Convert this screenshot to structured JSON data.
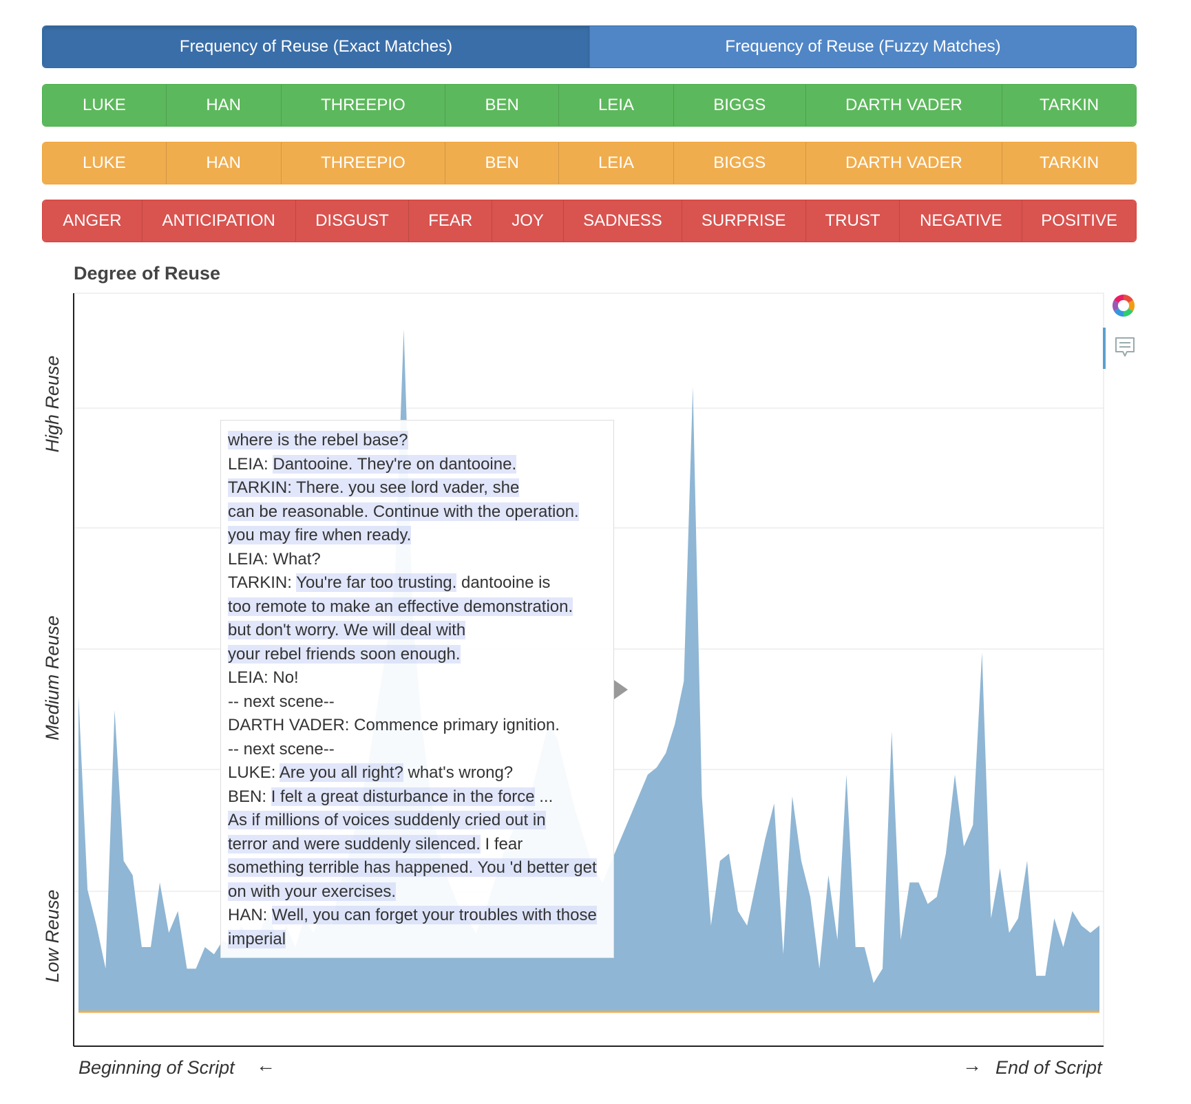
{
  "mode_tabs": [
    {
      "label": "Frequency of Reuse (Exact Matches)",
      "active": true
    },
    {
      "label": "Frequency of Reuse (Fuzzy Matches)",
      "active": false
    }
  ],
  "characters_green": [
    "LUKE",
    "HAN",
    "THREEPIO",
    "BEN",
    "LEIA",
    "BIGGS",
    "DARTH VADER",
    "TARKIN"
  ],
  "characters_orange": [
    "LUKE",
    "HAN",
    "THREEPIO",
    "BEN",
    "LEIA",
    "BIGGS",
    "DARTH VADER",
    "TARKIN"
  ],
  "emotions": [
    "ANGER",
    "ANTICIPATION",
    "DISGUST",
    "FEAR",
    "JOY",
    "SADNESS",
    "SURPRISE",
    "TRUST",
    "NEGATIVE",
    "POSITIVE"
  ],
  "colors": {
    "mode": "#5086c6",
    "mode_active": "#3a6ea8",
    "green": "#5cb85c",
    "orange": "#f0ad4e",
    "red": "#d9534f",
    "area": "#8fb6d4",
    "baseline": "#f0ad4e"
  },
  "icons": {
    "palette": "color-wheel-icon",
    "comment": "comment-icon"
  },
  "chart_data": {
    "type": "area",
    "title": "Degree of Reuse",
    "y_tick_labels": [
      "Low Reuse",
      "Medium Reuse",
      "High Reuse"
    ],
    "x_tick_labels": [
      "Beginning of Script",
      "End of Script"
    ],
    "x_arrow_left": "←",
    "x_arrow_right": "→",
    "grid": true,
    "ylim": [
      0,
      1
    ],
    "values": [
      0.44,
      0.17,
      0.12,
      0.06,
      0.42,
      0.21,
      0.19,
      0.09,
      0.09,
      0.18,
      0.11,
      0.14,
      0.06,
      0.06,
      0.09,
      0.08,
      0.1,
      0.09,
      0.12,
      0.1,
      0.11,
      0.14,
      0.1,
      0.12,
      0.09,
      0.13,
      0.11,
      0.14,
      0.12,
      0.18,
      0.22,
      0.28,
      0.34,
      0.42,
      0.5,
      0.6,
      0.95,
      0.55,
      0.4,
      0.3,
      0.22,
      0.18,
      0.15,
      0.13,
      0.11,
      0.14,
      0.18,
      0.22,
      0.25,
      0.28,
      0.3,
      0.35,
      0.4,
      0.38,
      0.33,
      0.28,
      0.24,
      0.2,
      0.18,
      0.21,
      0.24,
      0.27,
      0.3,
      0.33,
      0.34,
      0.36,
      0.4,
      0.46,
      0.87,
      0.3,
      0.12,
      0.21,
      0.22,
      0.14,
      0.12,
      0.18,
      0.24,
      0.29,
      0.08,
      0.3,
      0.21,
      0.16,
      0.06,
      0.19,
      0.1,
      0.33,
      0.09,
      0.09,
      0.04,
      0.06,
      0.39,
      0.1,
      0.18,
      0.18,
      0.15,
      0.16,
      0.22,
      0.33,
      0.23,
      0.26,
      0.5,
      0.13,
      0.2,
      0.11,
      0.13,
      0.21,
      0.05,
      0.05,
      0.13,
      0.09,
      0.14,
      0.12,
      0.11,
      0.12
    ]
  },
  "tooltip": {
    "lines": [
      [
        {
          "t": "where is the rebel base?",
          "h": true
        }
      ],
      [
        {
          "t": "LEIA: ",
          "h": false
        },
        {
          "t": "Dantooine. They're on dantooine.",
          "h": true
        }
      ],
      [
        {
          "t": "TARKIN: There. you see lord vader, she",
          "h": true
        }
      ],
      [
        {
          "t": "can be reasonable. Continue with the operation.",
          "h": true
        }
      ],
      [
        {
          "t": "you may fire when ready.",
          "h": true
        }
      ],
      [
        {
          "t": "LEIA: What?",
          "h": false
        }
      ],
      [
        {
          "t": "TARKIN: ",
          "h": false
        },
        {
          "t": "You're far too trusting.",
          "h": true
        },
        {
          "t": " dantooine is",
          "h": false
        }
      ],
      [
        {
          "t": "too remote to make an effective demonstration.",
          "h": true
        }
      ],
      [
        {
          "t": "but don't worry. We will deal with",
          "h": true
        }
      ],
      [
        {
          "t": "your rebel friends soon enough.",
          "h": true
        }
      ],
      [
        {
          "t": "LEIA: No!",
          "h": false
        }
      ],
      [
        {
          "t": "-- next scene--",
          "h": false
        }
      ],
      [
        {
          "t": "DARTH VADER: Commence primary ignition.",
          "h": false
        }
      ],
      [
        {
          "t": "-- next scene--",
          "h": false
        }
      ],
      [
        {
          "t": "LUKE: ",
          "h": false
        },
        {
          "t": "Are you all right?",
          "h": true
        },
        {
          "t": " what's wrong?",
          "h": false
        }
      ],
      [
        {
          "t": "BEN: ",
          "h": false
        },
        {
          "t": "I felt a great disturbance in the force",
          "h": true
        },
        {
          "t": " ...",
          "h": false
        }
      ],
      [
        {
          "t": "As if millions of voices suddenly cried out in",
          "h": true
        }
      ],
      [
        {
          "t": "terror and were suddenly silenced.",
          "h": true
        },
        {
          "t": " I fear",
          "h": false
        }
      ],
      [
        {
          "t": "something terrible has happened. You 'd better get",
          "h": true
        }
      ],
      [
        {
          "t": "on with your exercises.",
          "h": true
        }
      ],
      [
        {
          "t": "HAN: ",
          "h": false
        },
        {
          "t": "Well, you can forget your troubles with those",
          "h": true
        }
      ],
      [
        {
          "t": "imperial",
          "h": true
        }
      ]
    ]
  }
}
